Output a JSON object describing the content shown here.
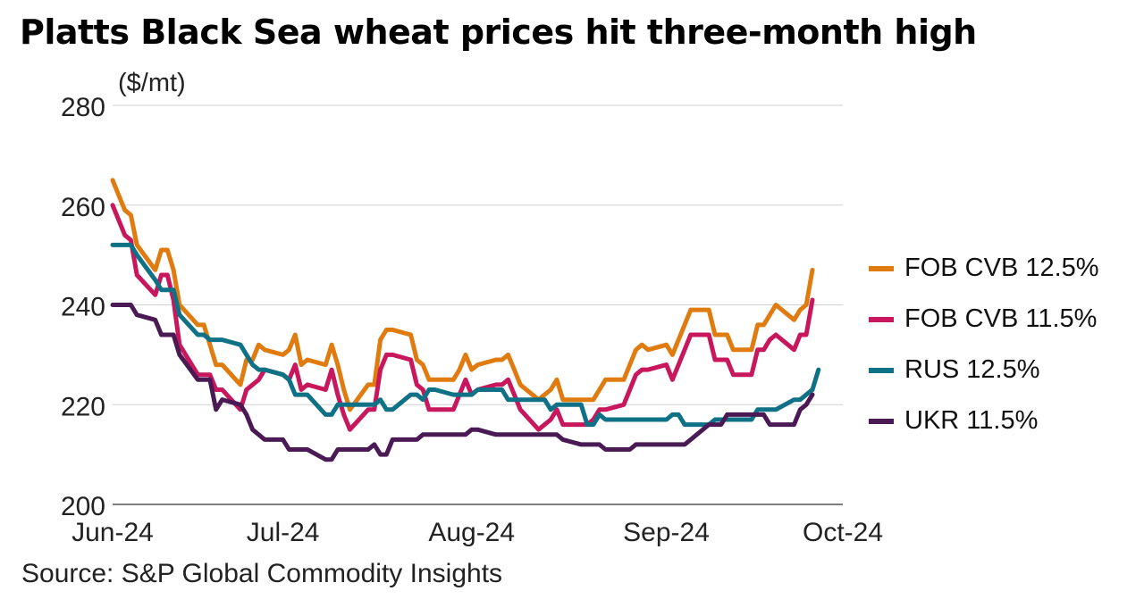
{
  "title": "Platts Black Sea wheat prices hit three-month high",
  "source": "Source: S&P Global Commodity Insights",
  "chart_data": {
    "type": "line",
    "title": "Platts Black Sea wheat prices hit three-month high",
    "ylabel": "($/mt)",
    "xlabel": "",
    "ylim": [
      200,
      280
    ],
    "yticks": [
      200,
      220,
      240,
      260,
      280
    ],
    "xticks": [
      {
        "label": "Jun-24",
        "date": "2024-06-03"
      },
      {
        "label": "Jul-24",
        "date": "2024-07-01"
      },
      {
        "label": "Aug-24",
        "date": "2024-08-01"
      },
      {
        "label": "Sep-24",
        "date": "2024-09-02"
      },
      {
        "label": "Oct-24",
        "date": "2024-10-01"
      }
    ],
    "x": [
      "2024-06-03",
      "2024-06-04",
      "2024-06-05",
      "2024-06-06",
      "2024-06-07",
      "2024-06-10",
      "2024-06-11",
      "2024-06-12",
      "2024-06-13",
      "2024-06-14",
      "2024-06-17",
      "2024-06-18",
      "2024-06-19",
      "2024-06-20",
      "2024-06-21",
      "2024-06-24",
      "2024-06-25",
      "2024-06-26",
      "2024-06-27",
      "2024-06-28",
      "2024-07-01",
      "2024-07-02",
      "2024-07-03",
      "2024-07-04",
      "2024-07-05",
      "2024-07-08",
      "2024-07-09",
      "2024-07-10",
      "2024-07-11",
      "2024-07-12",
      "2024-07-15",
      "2024-07-16",
      "2024-07-17",
      "2024-07-18",
      "2024-07-19",
      "2024-07-22",
      "2024-07-23",
      "2024-07-24",
      "2024-07-25",
      "2024-07-26",
      "2024-07-29",
      "2024-07-30",
      "2024-07-31",
      "2024-08-01",
      "2024-08-02",
      "2024-08-05",
      "2024-08-06",
      "2024-08-07",
      "2024-08-08",
      "2024-08-09",
      "2024-08-12",
      "2024-08-13",
      "2024-08-14",
      "2024-08-15",
      "2024-08-16",
      "2024-08-19",
      "2024-08-20",
      "2024-08-21",
      "2024-08-22",
      "2024-08-23",
      "2024-08-26",
      "2024-08-27",
      "2024-08-28",
      "2024-08-29",
      "2024-08-30",
      "2024-09-02",
      "2024-09-03",
      "2024-09-04",
      "2024-09-05",
      "2024-09-06",
      "2024-09-09",
      "2024-09-10",
      "2024-09-11",
      "2024-09-12",
      "2024-09-13",
      "2024-09-16",
      "2024-09-17",
      "2024-09-18",
      "2024-09-19",
      "2024-09-20",
      "2024-09-23",
      "2024-09-24",
      "2024-09-25",
      "2024-09-26",
      "2024-09-27",
      "2024-09-30",
      "2024-10-01",
      "2024-10-02",
      "2024-10-03",
      "2024-10-04"
    ],
    "series": [
      {
        "name": "FOB CVB 12.5%",
        "color": "#E07B10",
        "values": [
          265,
          262,
          259,
          258,
          252,
          247,
          251,
          251,
          247,
          240,
          236,
          236,
          232,
          228,
          228,
          224,
          229,
          229,
          232,
          231,
          230,
          231,
          234,
          228,
          229,
          228,
          232,
          228,
          223,
          219,
          224,
          224,
          233,
          235,
          235,
          234,
          229,
          228,
          225,
          225,
          225,
          227,
          230,
          227,
          228,
          229,
          229,
          230,
          227,
          224,
          221,
          222,
          223,
          225,
          221,
          221,
          221,
          221,
          223,
          225,
          225,
          228,
          231,
          232,
          231,
          232,
          230,
          233,
          236,
          239,
          239,
          234,
          234,
          234,
          231,
          231,
          236,
          236,
          238,
          240,
          237,
          239,
          240,
          247,
          null,
          null,
          null,
          null,
          null,
          null
        ]
      },
      {
        "name": "FOB CVB 11.5%",
        "color": "#C8175D",
        "values": [
          260,
          257,
          254,
          253,
          246,
          242,
          246,
          246,
          241,
          232,
          226,
          226,
          226,
          223,
          223,
          219,
          223,
          224,
          225,
          227,
          226,
          225,
          228,
          223,
          224,
          223,
          227,
          222,
          218,
          215,
          219,
          219,
          227,
          230,
          230,
          229,
          224,
          223,
          219,
          219,
          219,
          222,
          225,
          222,
          223,
          224,
          224,
          225,
          222,
          219,
          215,
          216,
          217,
          219,
          216,
          216,
          216,
          217,
          219,
          219,
          220,
          223,
          226,
          227,
          227,
          228,
          225,
          228,
          231,
          234,
          234,
          229,
          229,
          229,
          226,
          226,
          231,
          231,
          233,
          234,
          231,
          234,
          234,
          241,
          null,
          null,
          null,
          null,
          null,
          null
        ]
      },
      {
        "name": "RUS 12.5%",
        "color": "#0E7185",
        "values": [
          252,
          252,
          252,
          252,
          250,
          245,
          243,
          243,
          243,
          238,
          234,
          234,
          233,
          233,
          233,
          232,
          230,
          228,
          227,
          227,
          226,
          225,
          222,
          222,
          222,
          218,
          218,
          220,
          220,
          220,
          220,
          220,
          221,
          219,
          219,
          222,
          222,
          221,
          223,
          223,
          222,
          222,
          222,
          222,
          223,
          223,
          223,
          221,
          221,
          221,
          221,
          221,
          219,
          220,
          220,
          220,
          216,
          216,
          218,
          217,
          217,
          217,
          217,
          217,
          217,
          217,
          218,
          218,
          216,
          216,
          216,
          217,
          217,
          217,
          217,
          217,
          219,
          219,
          219,
          219,
          221,
          221,
          222,
          223,
          227,
          null,
          null,
          null,
          null,
          null
        ]
      },
      {
        "name": "UKR 11.5%",
        "color": "#4A1A55",
        "values": [
          240,
          240,
          240,
          240,
          238,
          237,
          234,
          234,
          234,
          230,
          225,
          225,
          225,
          219,
          221,
          220,
          218,
          215,
          214,
          213,
          213,
          211,
          211,
          211,
          211,
          209,
          209,
          211,
          211,
          211,
          211,
          212,
          210,
          210,
          213,
          213,
          213,
          214,
          214,
          214,
          214,
          214,
          214,
          215,
          215,
          214,
          214,
          214,
          214,
          214,
          214,
          214,
          214,
          214,
          213,
          212,
          212,
          212,
          212,
          211,
          211,
          211,
          212,
          212,
          212,
          212,
          212,
          212,
          212,
          213,
          216,
          216,
          216,
          218,
          218,
          218,
          218,
          218,
          216,
          216,
          216,
          219,
          220,
          222,
          null,
          null,
          null,
          null,
          null,
          null
        ]
      }
    ],
    "legend_position": "right",
    "grid": "horizontal"
  }
}
